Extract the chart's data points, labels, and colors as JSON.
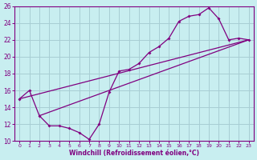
{
  "xlabel": "Windchill (Refroidissement éolien,°C)",
  "bg_color": "#c8eef0",
  "grid_color": "#a8cdd4",
  "line_color": "#800080",
  "xlim": [
    -0.5,
    23.5
  ],
  "ylim": [
    10,
    26
  ],
  "xticks": [
    0,
    1,
    2,
    3,
    4,
    5,
    6,
    7,
    8,
    9,
    10,
    11,
    12,
    13,
    14,
    15,
    16,
    17,
    18,
    19,
    20,
    21,
    22,
    23
  ],
  "yticks": [
    10,
    12,
    14,
    16,
    18,
    20,
    22,
    24,
    26
  ],
  "line1_x": [
    0,
    1,
    2,
    3,
    4,
    5,
    6,
    7,
    8,
    9,
    10,
    11,
    12,
    13,
    14,
    15,
    16,
    17,
    18,
    19,
    20,
    21,
    22,
    23
  ],
  "line1_y": [
    15.0,
    16.0,
    13.0,
    11.8,
    11.8,
    11.5,
    11.0,
    10.2,
    12.0,
    15.8,
    18.3,
    18.5,
    19.2,
    20.5,
    21.2,
    22.2,
    24.2,
    24.8,
    25.0,
    25.8,
    24.5,
    22.0,
    22.2,
    22.0
  ],
  "line2_x": [
    0,
    23
  ],
  "line2_y": [
    15.0,
    22.0
  ],
  "line3_x": [
    2,
    23
  ],
  "line3_y": [
    13.0,
    22.0
  ]
}
